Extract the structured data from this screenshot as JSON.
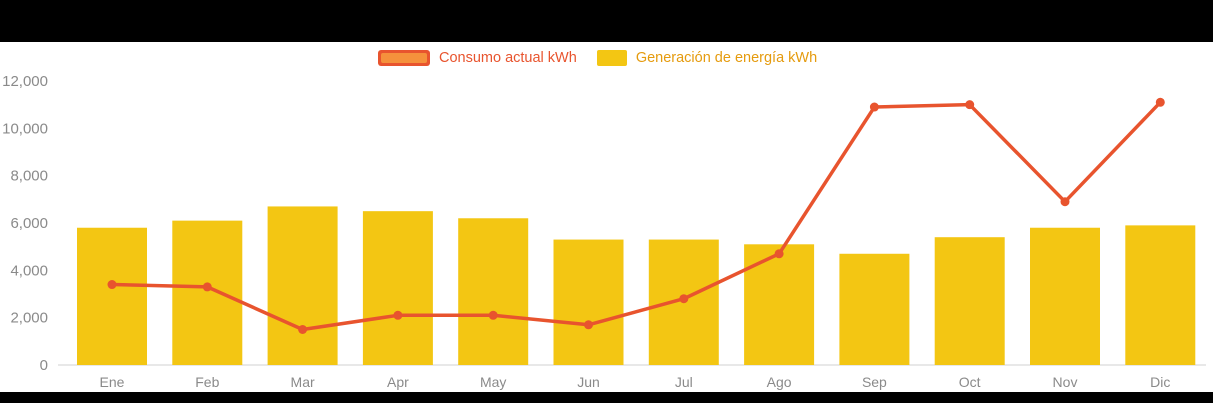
{
  "chart_data": {
    "type": "combo",
    "categories": [
      "Ene",
      "Feb",
      "Mar",
      "Apr",
      "May",
      "Jun",
      "Jul",
      "Ago",
      "Sep",
      "Oct",
      "Nov",
      "Dic"
    ],
    "series": [
      {
        "name": "Consumo actual kWh",
        "type": "line",
        "color": "#e8542e",
        "values": [
          3400,
          3300,
          1500,
          2100,
          2100,
          1700,
          2800,
          4700,
          10900,
          11000,
          6900,
          11100
        ]
      },
      {
        "name": "Generación de energía kWh",
        "type": "bar",
        "color": "#f3c613",
        "values": [
          5800,
          6100,
          6700,
          6500,
          6200,
          5300,
          5300,
          5100,
          4700,
          5400,
          5800,
          5900
        ]
      }
    ],
    "title": "",
    "xlabel": "",
    "ylabel": "",
    "ylim": [
      0,
      12000
    ],
    "yticks": [
      0,
      2000,
      4000,
      6000,
      8000,
      10000,
      12000
    ],
    "ytick_labels": [
      "0",
      "2,000",
      "4,000",
      "6,000",
      "8,000",
      "10,000",
      "12,000"
    ],
    "grid": false,
    "legend_position": "top"
  },
  "colors": {
    "page_background": "#000000",
    "plot_background": "#ffffff",
    "tick_text": "#8a8a8a",
    "axis_line": "#d2d2d2",
    "legend_consumo_text": "#e8542e",
    "legend_generacion_text": "#e59b0e",
    "legend_line_swatch_inner": "#f5913c"
  }
}
